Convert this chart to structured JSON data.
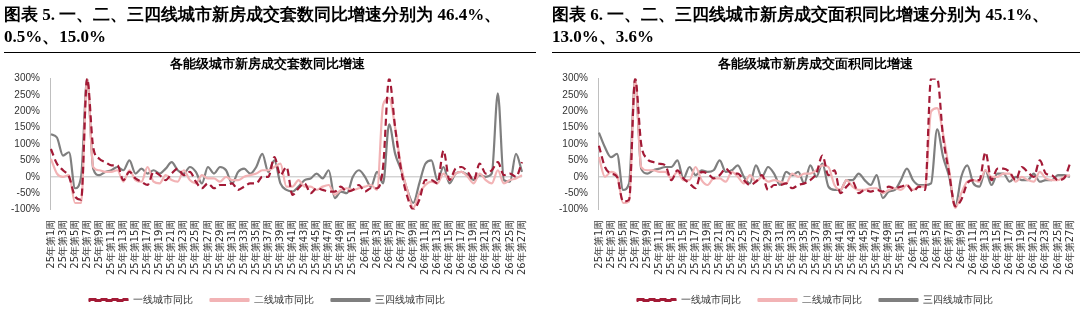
{
  "chart_data": [
    {
      "type": "line",
      "title": "图表 5. 一、二、三四线城市新房成交套数同比增速分别为 46.4%、0.5%、15.0%",
      "subtitle": "各能级城市新房成交套数同比增速",
      "categories": [
        "25年第1周",
        null,
        "25年第3周",
        null,
        "25年第5周",
        null,
        "25年第7周",
        null,
        "25年第9周",
        null,
        "25年第11周",
        null,
        "25年第13周",
        null,
        "25年第15周",
        null,
        "25年第17周",
        null,
        "25年第19周",
        null,
        "25年第21周",
        null,
        "25年第23周",
        null,
        "25年第25周",
        null,
        "25年第27周",
        null,
        "25年第29周",
        null,
        "25年第31周",
        null,
        "25年第33周",
        null,
        "25年第35周",
        null,
        "25年第37周",
        null,
        "25年第39周",
        null,
        "25年第41周",
        null,
        "25年第43周",
        null,
        "25年第45周",
        null,
        "25年第47周",
        null,
        "25年第49周",
        null,
        "25年第51周",
        null,
        "26年第1周",
        null,
        "26年第3周",
        null,
        "26年第5周",
        null,
        "26年第7周",
        null,
        "26年第9周",
        null,
        "26年第11周",
        null,
        "26年第13周",
        null,
        "26年第15周",
        null,
        "26年第17周",
        null,
        "26年第19周",
        null,
        "26年第21周",
        null,
        "26年第23周",
        null,
        "26年第25周",
        null,
        "26年第27周"
      ],
      "series": [
        {
          "name": "一线城市同比",
          "color": "#a31a36",
          "line_style": "dashed",
          "values": [
            85,
            40,
            20,
            0,
            -60,
            -70,
            300,
            90,
            55,
            45,
            35,
            35,
            -10,
            15,
            -5,
            -15,
            -25,
            15,
            5,
            -10,
            10,
            25,
            5,
            15,
            -15,
            -35,
            -20,
            -35,
            -25,
            -25,
            -20,
            -40,
            -30,
            -20,
            -20,
            0,
            0,
            60,
            5,
            30,
            -55,
            -35,
            -20,
            -50,
            -35,
            -40,
            -45,
            -45,
            -30,
            -45,
            -40,
            -25,
            -45,
            -35,
            -35,
            30,
            300,
            150,
            20,
            -60,
            -100,
            -70,
            -10,
            -10,
            -20,
            80,
            -10,
            25,
            30,
            15,
            -10,
            40,
            10,
            20,
            45,
            5,
            10,
            0,
            45
          ]
        },
        {
          "name": "二线城市同比",
          "color": "#f2b3b5",
          "line_style": "solid",
          "values": [
            55,
            10,
            0,
            5,
            -80,
            -80,
            300,
            30,
            20,
            15,
            15,
            20,
            -15,
            20,
            -10,
            -15,
            30,
            -15,
            -20,
            5,
            -10,
            -15,
            20,
            -10,
            -20,
            5,
            -5,
            -5,
            -15,
            0,
            -10,
            -10,
            0,
            5,
            10,
            20,
            20,
            30,
            40,
            -30,
            -30,
            -10,
            -30,
            -30,
            -40,
            -30,
            -25,
            -55,
            -40,
            -35,
            -40,
            -35,
            -30,
            -25,
            -40,
            220,
            240,
            150,
            30,
            -40,
            -95,
            -50,
            -25,
            -15,
            -20,
            10,
            -10,
            10,
            15,
            0,
            -20,
            10,
            -10,
            -20,
            20,
            -20,
            -10,
            -5,
            5
          ]
        },
        {
          "name": "三四线城市同比",
          "color": "#7f7f7f",
          "line_style": "solid",
          "values": [
            130,
            120,
            65,
            75,
            -35,
            0,
            300,
            25,
            5,
            15,
            20,
            30,
            20,
            50,
            10,
            25,
            10,
            20,
            10,
            25,
            45,
            20,
            10,
            30,
            15,
            -20,
            30,
            10,
            30,
            20,
            -20,
            15,
            25,
            10,
            30,
            70,
            15,
            50,
            -20,
            -40,
            -45,
            -30,
            -10,
            -5,
            10,
            -5,
            20,
            -65,
            -45,
            -50,
            0,
            20,
            0,
            -30,
            15,
            -20,
            160,
            70,
            20,
            -40,
            -80,
            -20,
            40,
            50,
            -10,
            30,
            -20,
            10,
            15,
            5,
            -10,
            5,
            0,
            10,
            255,
            -10,
            -15,
            70,
            15
          ]
        }
      ],
      "ylim": [
        -100,
        300
      ],
      "yticks": [
        {
          "value": -100,
          "label": "-100%"
        },
        {
          "value": -50,
          "label": "-50%"
        },
        {
          "value": 0,
          "label": "0%"
        },
        {
          "value": 50,
          "label": "50%"
        },
        {
          "value": 100,
          "label": "100%"
        },
        {
          "value": 150,
          "label": "150%"
        },
        {
          "value": 200,
          "label": "200%"
        },
        {
          "value": 250,
          "label": "250%"
        },
        {
          "value": 300,
          "label": "300%"
        }
      ],
      "ref_lines": [
        {
          "axis": "y",
          "value": 0,
          "color": "#bfbfbf"
        }
      ],
      "grid": false,
      "legend": "bottom"
    },
    {
      "type": "line",
      "title": "图表 6. 一、二、三四线城市新房成交面积同比增速分别为 45.1%、13.0%、3.6%",
      "subtitle": "各能级城市新房成交面积同比增速",
      "categories": [
        "25年第1周",
        null,
        "25年第3周",
        null,
        "25年第5周",
        null,
        "25年第7周",
        null,
        "25年第9周",
        null,
        "25年第11周",
        null,
        "25年第13周",
        null,
        "25年第15周",
        null,
        "25年第17周",
        null,
        "25年第19周",
        null,
        "25年第21周",
        null,
        "25年第23周",
        null,
        "25年第25周",
        null,
        "25年第27周",
        null,
        "25年第29周",
        null,
        "25年第31周",
        null,
        "25年第33周",
        null,
        "25年第35周",
        null,
        "25年第37周",
        null,
        "25年第39周",
        null,
        "25年第41周",
        null,
        "25年第43周",
        null,
        "25年第45周",
        null,
        "25年第47周",
        null,
        "25年第49周",
        null,
        "25年第51周",
        null,
        "26年第1周",
        null,
        "26年第3周",
        null,
        "26年第5周",
        null,
        "26年第7周",
        null,
        "26年第9周",
        null,
        "26年第11周",
        null,
        "26年第13周",
        null,
        "26年第15周",
        null,
        "26年第17周",
        null,
        "26年第19周",
        null,
        "26年第21周",
        null,
        "26年第23周",
        null,
        "26年第25周",
        null,
        "26年第27周"
      ],
      "series": [
        {
          "name": "一线城市同比",
          "color": "#a31a36",
          "line_style": "dashed",
          "values": [
            95,
            30,
            10,
            0,
            -75,
            -70,
            300,
            100,
            55,
            45,
            40,
            35,
            -10,
            20,
            -5,
            -20,
            -35,
            15,
            10,
            -5,
            5,
            25,
            10,
            10,
            -10,
            -25,
            -15,
            5,
            -40,
            -25,
            -25,
            -20,
            -35,
            -25,
            -20,
            -10,
            10,
            65,
            5,
            20,
            -50,
            -30,
            -15,
            -50,
            -40,
            -45,
            -40,
            -45,
            -30,
            -35,
            -30,
            -25,
            -45,
            -30,
            -40,
            300,
            300,
            120,
            10,
            -90,
            -70,
            -20,
            -10,
            -10,
            75,
            -10,
            25,
            25,
            15,
            -10,
            30,
            15,
            0,
            50,
            10,
            5,
            -10,
            -5,
            40
          ]
        },
        {
          "name": "二线城市同比",
          "color": "#f2b3b5",
          "line_style": "solid",
          "values": [
            60,
            0,
            15,
            5,
            -80,
            -75,
            300,
            30,
            20,
            20,
            15,
            15,
            -5,
            15,
            -10,
            -10,
            30,
            -10,
            -25,
            -5,
            -5,
            -15,
            15,
            0,
            -20,
            5,
            -15,
            0,
            -15,
            -10,
            -15,
            -20,
            10,
            0,
            10,
            10,
            20,
            35,
            30,
            -25,
            -40,
            -10,
            -30,
            -40,
            -40,
            -35,
            -35,
            -50,
            -40,
            -35,
            -40,
            -25,
            -40,
            -30,
            -30,
            200,
            210,
            130,
            20,
            -95,
            -50,
            -15,
            -10,
            -15,
            20,
            0,
            0,
            10,
            10,
            -15,
            0,
            -10,
            -15,
            15,
            -5,
            -10,
            -10,
            0,
            5
          ]
        },
        {
          "name": "三四线城市同比",
          "color": "#7f7f7f",
          "line_style": "solid",
          "values": [
            135,
            90,
            60,
            70,
            -40,
            -20,
            300,
            25,
            10,
            20,
            25,
            30,
            30,
            50,
            -5,
            30,
            5,
            20,
            15,
            20,
            50,
            15,
            20,
            35,
            0,
            -20,
            35,
            0,
            30,
            10,
            -25,
            15,
            5,
            15,
            -20,
            35,
            0,
            40,
            -30,
            -40,
            -40,
            -10,
            -10,
            10,
            -10,
            -25,
            5,
            -65,
            -45,
            -40,
            -10,
            25,
            -10,
            -25,
            -25,
            -20,
            145,
            60,
            0,
            -90,
            0,
            35,
            -20,
            -30,
            20,
            -25,
            10,
            10,
            -15,
            0,
            -10,
            -10,
            10,
            -15,
            -10,
            -10,
            5,
            5,
            0
          ]
        }
      ],
      "ylim": [
        -100,
        300
      ],
      "yticks": [
        {
          "value": -100,
          "label": "-100%"
        },
        {
          "value": -50,
          "label": "-50%"
        },
        {
          "value": 0,
          "label": "0%"
        },
        {
          "value": 50,
          "label": "50%"
        },
        {
          "value": 100,
          "label": "100%"
        },
        {
          "value": 150,
          "label": "150%"
        },
        {
          "value": 200,
          "label": "200%"
        },
        {
          "value": 250,
          "label": "250%"
        },
        {
          "value": 300,
          "label": "300%"
        }
      ],
      "ref_lines": [
        {
          "axis": "y",
          "value": 0,
          "color": "#bfbfbf"
        }
      ],
      "grid": false,
      "legend": "bottom"
    }
  ]
}
